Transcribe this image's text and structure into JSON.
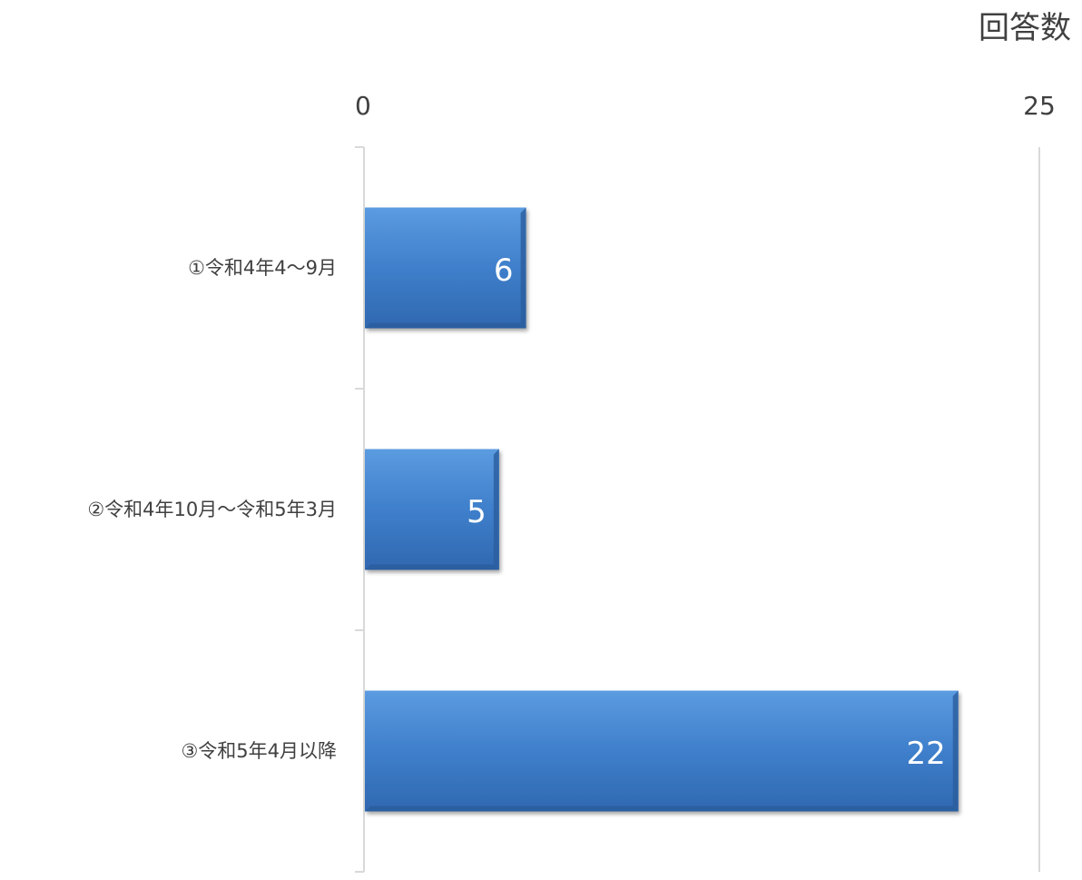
{
  "chart_data": {
    "type": "bar",
    "orientation": "horizontal",
    "axis_title": "回答数",
    "xlim": [
      0,
      25
    ],
    "x_ticks": [
      "0",
      "25"
    ],
    "grid": false,
    "categories": [
      "①令和4年4～9月",
      "②令和4年10月～令和5年3月",
      "③令和5年4月以降"
    ],
    "values": [
      6,
      5,
      22
    ],
    "data_labels": [
      "6",
      "5",
      "22"
    ],
    "colors": {
      "bar": "#3F7FCB",
      "bar_light": "#5B9BE0",
      "bar_dark": "#2A5E9E",
      "data_label": "#ffffff",
      "axis_line": "#d9d9d9",
      "text": "#404040"
    }
  }
}
